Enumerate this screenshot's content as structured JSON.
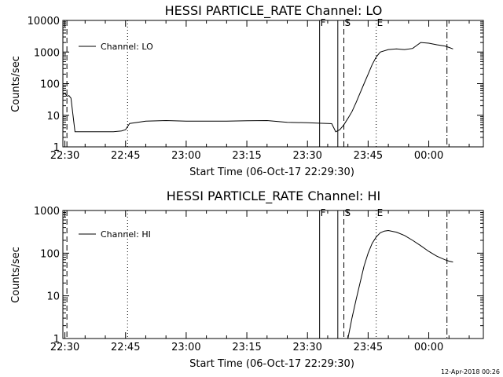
{
  "footer": {
    "timestamp": "12-Apr-2018 00:26"
  },
  "chart_data": [
    {
      "type": "line",
      "title": "HESSI PARTICLE_RATE Channel: LO",
      "xlabel": "Start Time (06-Oct-17 22:29:30)",
      "ylabel": "Counts/sec",
      "yscale": "log",
      "grid": false,
      "legend_position": "top-left",
      "x_ticks": [
        "22:30",
        "22:45",
        "23:00",
        "23:15",
        "23:30",
        "23:45",
        "00:00"
      ],
      "y_ticks": [
        "1",
        "10",
        "100",
        "1000",
        "10000"
      ],
      "ylim": [
        1,
        10000
      ],
      "xlim": [
        "22:29:30",
        "00:13:30"
      ],
      "series": [
        {
          "name": "Channel: LO",
          "x": [
            "22:29:30",
            "22:30:00",
            "22:30:30",
            "22:31:00",
            "22:31:30",
            "22:32:00",
            "22:32:30",
            "22:33:00",
            "22:35:00",
            "22:38:00",
            "22:40:00",
            "22:42:00",
            "22:44:00",
            "22:45:00",
            "22:46:00",
            "22:50:00",
            "22:55:00",
            "23:00:00",
            "23:05:00",
            "23:10:00",
            "23:15:00",
            "23:20:00",
            "23:25:00",
            "23:30:00",
            "23:33:00",
            "23:35:00",
            "23:36:00",
            "23:37:00",
            "23:38:00",
            "23:39:00",
            "23:40:00",
            "23:41:00",
            "23:42:00",
            "23:43:00",
            "23:44:00",
            "23:45:00",
            "23:46:00",
            "23:47:00",
            "23:48:00",
            "23:50:00",
            "23:52:00",
            "23:54:00",
            "23:56:00",
            "23:58:00",
            "00:00:00",
            "00:02:00",
            "00:04:00",
            "00:05:00",
            "00:06:00"
          ],
          "y": [
            45,
            50,
            40,
            42,
            35,
            10,
            3,
            3,
            3,
            3,
            3,
            3,
            3.2,
            3.5,
            5.5,
            6.5,
            6.8,
            6.5,
            6.5,
            6.5,
            6.7,
            6.8,
            6.0,
            5.8,
            5.6,
            5.5,
            5.4,
            3.0,
            3.5,
            5,
            8,
            13,
            25,
            50,
            100,
            200,
            400,
            700,
            1000,
            1200,
            1250,
            1200,
            1300,
            2000,
            1900,
            1700,
            1550,
            1400,
            1250
          ]
        }
      ]
    },
    {
      "type": "line",
      "title": "HESSI PARTICLE_RATE Channel: HI",
      "xlabel": "Start Time (06-Oct-17 22:29:30)",
      "ylabel": "Counts/sec",
      "yscale": "log",
      "grid": false,
      "legend_position": "top-left",
      "x_ticks": [
        "22:30",
        "22:45",
        "23:00",
        "23:15",
        "23:30",
        "23:45",
        "00:00"
      ],
      "y_ticks": [
        "1",
        "10",
        "100",
        "1000"
      ],
      "ylim": [
        1,
        1000
      ],
      "xlim": [
        "22:29:30",
        "00:13:30"
      ],
      "series": [
        {
          "name": "Channel: HI",
          "x": [
            "23:40:00",
            "23:41:00",
            "23:42:00",
            "23:43:00",
            "23:44:00",
            "23:45:00",
            "23:46:00",
            "23:47:00",
            "23:48:00",
            "23:49:00",
            "23:50:00",
            "23:52:00",
            "23:54:00",
            "23:56:00",
            "23:58:00",
            "00:00:00",
            "00:02:00",
            "00:04:00",
            "00:05:00",
            "00:06:00"
          ],
          "y": [
            1,
            3,
            8,
            20,
            50,
            100,
            170,
            240,
            300,
            330,
            340,
            310,
            260,
            200,
            150,
            110,
            85,
            70,
            65,
            62
          ]
        }
      ]
    }
  ],
  "markers": [
    {
      "time": "22:29:30",
      "style": "dashed"
    },
    {
      "time": "22:30:30",
      "style": "dashed"
    },
    {
      "time": "22:45:30",
      "style": "dotted"
    },
    {
      "time": "23:33:00",
      "style": "solid",
      "label": "F"
    },
    {
      "time": "23:37:30",
      "style": "solid"
    },
    {
      "time": "23:39:00",
      "style": "dashed",
      "label": "S"
    },
    {
      "time": "23:47:00",
      "style": "dotted",
      "label": "E"
    },
    {
      "time": "00:04:30",
      "style": "dashdot"
    }
  ]
}
